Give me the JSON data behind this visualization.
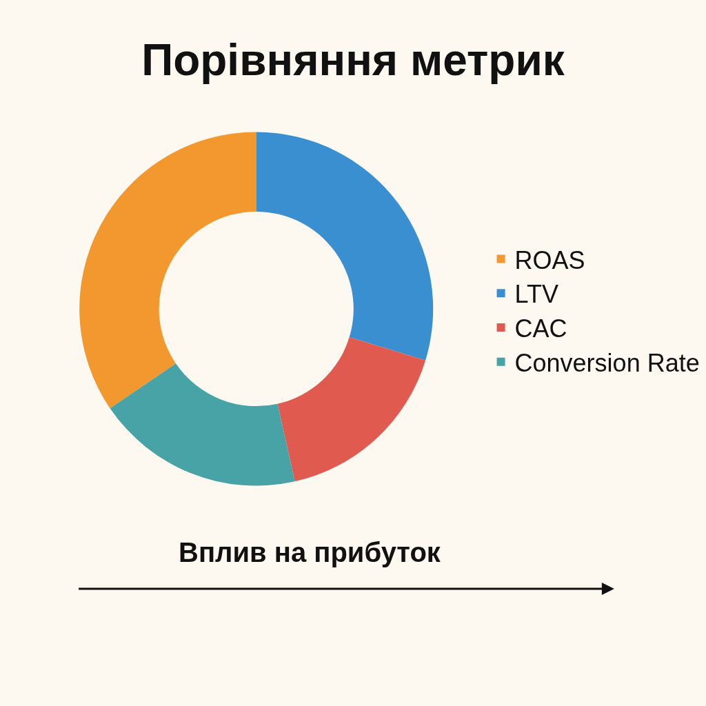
{
  "chart_data": {
    "type": "donut",
    "title": "Порівняння метрик",
    "categories": [
      "ROAS",
      "LTV",
      "CAC",
      "Conversion Rate"
    ],
    "values": [
      34.5,
      29.7,
      16.8,
      19.0
    ],
    "colors": [
      "#f2982e",
      "#3a8fd0",
      "#e05a50",
      "#48a3a6"
    ],
    "legend": "right",
    "annotations": [
      "Вплив на прибуток"
    ]
  }
}
